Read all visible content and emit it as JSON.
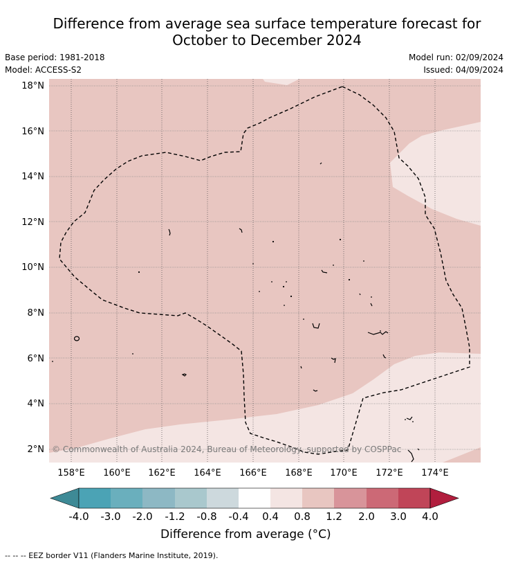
{
  "title_line1": "Difference from average sea surface temperature forecast for",
  "title_line2": "October to December 2024",
  "base_period": "Base period: 1981-2018",
  "model": "Model: ACCESS-S2",
  "model_run": "Model run: 02/09/2024",
  "issued": "Issued: 04/09/2024",
  "copyright": "© Commonwealth of Australia 2024, Bureau of Meteorology, supported by COSPPac",
  "x_ticks": [
    "158°E",
    "160°E",
    "162°E",
    "164°E",
    "166°E",
    "168°E",
    "170°E",
    "172°E",
    "174°E"
  ],
  "y_ticks": [
    "18°N",
    "16°N",
    "14°N",
    "12°N",
    "10°N",
    "8°N",
    "6°N",
    "4°N",
    "2°N"
  ],
  "colorbar": {
    "title": "Difference from average (°C)",
    "labels": [
      "-4.0",
      "-3.0",
      "-2.0",
      "-1.2",
      "-0.8",
      "-0.4",
      "0.4",
      "0.8",
      "1.2",
      "2.0",
      "3.0",
      "4.0"
    ],
    "colors": [
      "#3e8a96",
      "#4ba3b5",
      "#6aafbd",
      "#8db8c4",
      "#a9c8cd",
      "#cdd9dd",
      "#ffffff",
      "#f4e5e3",
      "#e8c6c1",
      "#d8949a",
      "#cc6976",
      "#c04558",
      "#b11e3e"
    ]
  },
  "map_colors": {
    "warm_fill": "#e8c6c1",
    "light_fill": "#f4e5e3"
  },
  "footnote": "-- -- -- EEZ border V11 (Flanders Marine Institute, 2019)."
}
